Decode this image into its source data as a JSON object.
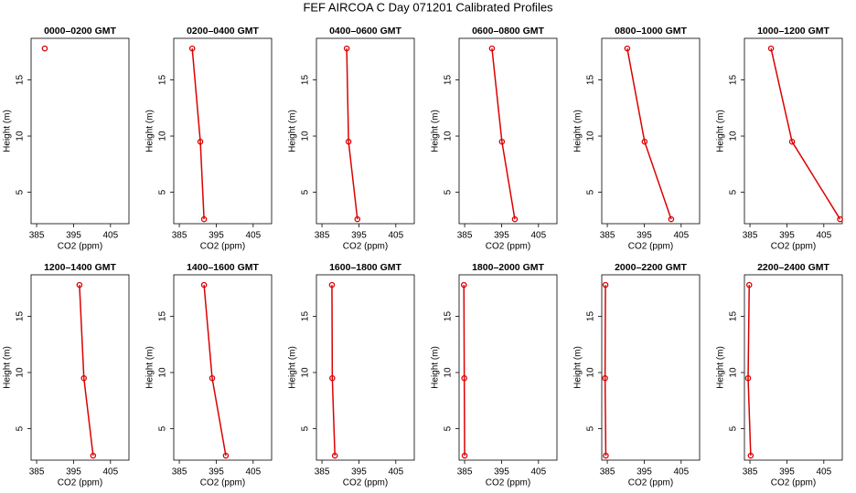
{
  "title": "FEF AIRCOA C  Day 071201  Calibrated Profiles",
  "chart_data": [
    {
      "type": "line",
      "title": "0000–0200 GMT",
      "x_label": "CO2 (ppm)",
      "y_label": "Height (m)",
      "color": "#dd0000",
      "x": [
        387.2
      ],
      "values": [
        17.8
      ],
      "xlim": [
        383.5,
        410
      ],
      "ylim": [
        2.2,
        18.7
      ],
      "xticks": [
        385,
        395,
        405
      ],
      "yticks": [
        5,
        10,
        15
      ]
    },
    {
      "type": "line",
      "title": "0200–0400 GMT",
      "x_label": "CO2 (ppm)",
      "y_label": "Height (m)",
      "color": "#dd0000",
      "x": [
        388.5,
        390.7,
        391.7
      ],
      "values": [
        17.8,
        9.5,
        2.6
      ],
      "xlim": [
        383.5,
        410
      ],
      "ylim": [
        2.2,
        18.7
      ],
      "xticks": [
        385,
        395,
        405
      ],
      "yticks": [
        5,
        10,
        15
      ]
    },
    {
      "type": "line",
      "title": "0400–0600 GMT",
      "x_label": "CO2 (ppm)",
      "y_label": "Height (m)",
      "color": "#dd0000",
      "x": [
        391.7,
        392.2,
        394.6
      ],
      "values": [
        17.8,
        9.5,
        2.6
      ],
      "xlim": [
        383.5,
        410
      ],
      "ylim": [
        2.2,
        18.7
      ],
      "xticks": [
        385,
        395,
        405
      ],
      "yticks": [
        5,
        10,
        15
      ]
    },
    {
      "type": "line",
      "title": "0600–0800 GMT",
      "x_label": "CO2 (ppm)",
      "y_label": "Height (m)",
      "color": "#dd0000",
      "x": [
        392.4,
        395.1,
        398.6
      ],
      "values": [
        17.8,
        9.5,
        2.6
      ],
      "xlim": [
        383.5,
        410
      ],
      "ylim": [
        2.2,
        18.7
      ],
      "xticks": [
        385,
        395,
        405
      ],
      "yticks": [
        5,
        10,
        15
      ]
    },
    {
      "type": "line",
      "title": "0800–1000 GMT",
      "x_label": "CO2 (ppm)",
      "y_label": "Height (m)",
      "color": "#dd0000",
      "x": [
        390.4,
        395.1,
        402.3
      ],
      "values": [
        17.8,
        9.5,
        2.6
      ],
      "xlim": [
        383.5,
        410
      ],
      "ylim": [
        2.2,
        18.7
      ],
      "xticks": [
        385,
        395,
        405
      ],
      "yticks": [
        5,
        10,
        15
      ]
    },
    {
      "type": "line",
      "title": "1000–1200 GMT",
      "x_label": "CO2 (ppm)",
      "y_label": "Height (m)",
      "color": "#dd0000",
      "x": [
        390.7,
        396.4,
        409.4
      ],
      "values": [
        17.8,
        9.5,
        2.6
      ],
      "xlim": [
        383.5,
        410
      ],
      "ylim": [
        2.2,
        18.7
      ],
      "xticks": [
        385,
        395,
        405
      ],
      "yticks": [
        5,
        10,
        15
      ]
    },
    {
      "type": "line",
      "title": "1200–1400 GMT",
      "x_label": "CO2 (ppm)",
      "y_label": "Height (m)",
      "color": "#dd0000",
      "x": [
        396.6,
        397.8,
        400.3
      ],
      "values": [
        17.8,
        9.5,
        2.6
      ],
      "xlim": [
        383.5,
        410
      ],
      "ylim": [
        2.2,
        18.7
      ],
      "xticks": [
        385,
        395,
        405
      ],
      "yticks": [
        5,
        10,
        15
      ]
    },
    {
      "type": "line",
      "title": "1400–1600 GMT",
      "x_label": "CO2 (ppm)",
      "y_label": "Height (m)",
      "color": "#dd0000",
      "x": [
        391.7,
        393.9,
        397.6
      ],
      "values": [
        17.8,
        9.5,
        2.6
      ],
      "xlim": [
        383.5,
        410
      ],
      "ylim": [
        2.2,
        18.7
      ],
      "xticks": [
        385,
        395,
        405
      ],
      "yticks": [
        5,
        10,
        15
      ]
    },
    {
      "type": "line",
      "title": "1600–1800 GMT",
      "x_label": "CO2 (ppm)",
      "y_label": "Height (m)",
      "color": "#dd0000",
      "x": [
        387.7,
        387.8,
        388.5
      ],
      "values": [
        17.8,
        9.5,
        2.6
      ],
      "xlim": [
        383.5,
        410
      ],
      "ylim": [
        2.2,
        18.7
      ],
      "xticks": [
        385,
        395,
        405
      ],
      "yticks": [
        5,
        10,
        15
      ]
    },
    {
      "type": "line",
      "title": "1800–2000 GMT",
      "x_label": "CO2 (ppm)",
      "y_label": "Height (m)",
      "color": "#dd0000",
      "x": [
        384.8,
        384.9,
        385.0
      ],
      "values": [
        17.8,
        9.5,
        2.6
      ],
      "xlim": [
        383.5,
        410
      ],
      "ylim": [
        2.2,
        18.7
      ],
      "xticks": [
        385,
        395,
        405
      ],
      "yticks": [
        5,
        10,
        15
      ]
    },
    {
      "type": "line",
      "title": "2000–2200 GMT",
      "x_label": "CO2 (ppm)",
      "y_label": "Height (m)",
      "color": "#dd0000",
      "x": [
        384.5,
        384.4,
        384.6
      ],
      "values": [
        17.8,
        9.5,
        2.6
      ],
      "xlim": [
        383.5,
        410
      ],
      "ylim": [
        2.2,
        18.7
      ],
      "xticks": [
        385,
        395,
        405
      ],
      "yticks": [
        5,
        10,
        15
      ]
    },
    {
      "type": "line",
      "title": "2200–2400 GMT",
      "x_label": "CO2 (ppm)",
      "y_label": "Height (m)",
      "color": "#dd0000",
      "x": [
        384.8,
        384.5,
        385.2
      ],
      "values": [
        17.8,
        9.5,
        2.6
      ],
      "xlim": [
        383.5,
        410
      ],
      "ylim": [
        2.2,
        18.7
      ],
      "xticks": [
        385,
        395,
        405
      ],
      "yticks": [
        5,
        10,
        15
      ]
    }
  ]
}
